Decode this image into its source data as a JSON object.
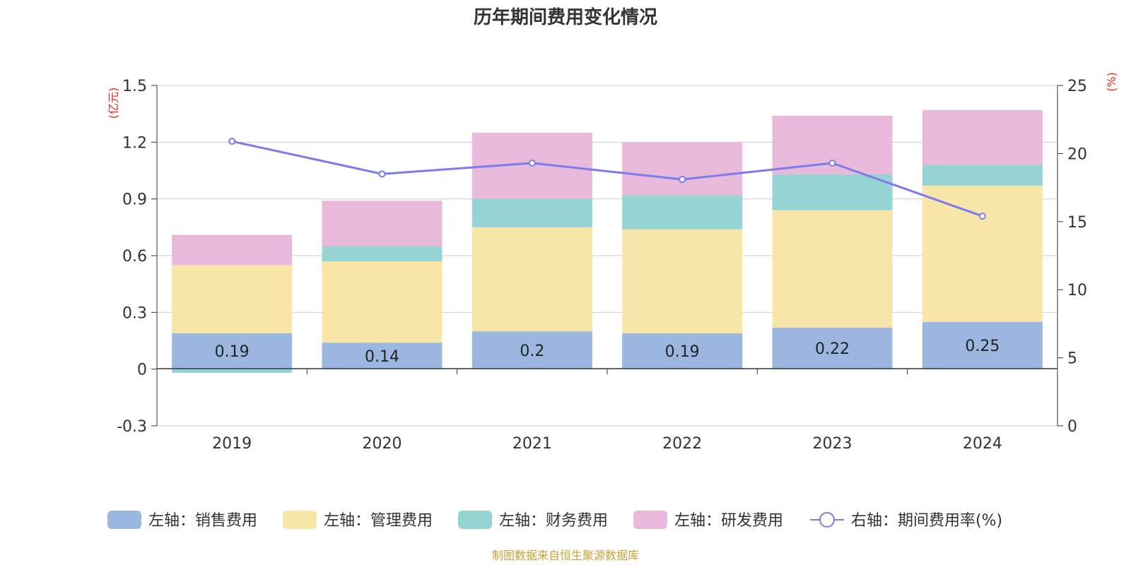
{
  "chart_data": {
    "type": "bar",
    "title": "历年期间费用变化情况",
    "categories": [
      "2019",
      "2020",
      "2021",
      "2022",
      "2023",
      "2024"
    ],
    "left_axis": {
      "unit_label": "(亿元)",
      "ylim": [
        -0.3,
        1.5
      ],
      "ticks": [
        "-0.3",
        "0",
        "0.3",
        "0.6",
        "0.9",
        "1.2",
        "1.5"
      ]
    },
    "right_axis": {
      "unit_label": "(%)",
      "ylim": [
        0,
        25
      ],
      "ticks": [
        "0",
        "5",
        "10",
        "15",
        "20",
        "25"
      ]
    },
    "series": [
      {
        "name": "左轴：销售费用",
        "type": "bar",
        "axis": "left",
        "color": "#9BB7E0",
        "values": [
          0.19,
          0.14,
          0.2,
          0.19,
          0.22,
          0.25
        ],
        "labels": [
          "0.19",
          "0.14",
          "0.2",
          "0.19",
          "0.22",
          "0.25"
        ]
      },
      {
        "name": "左轴：管理费用",
        "type": "bar",
        "axis": "left",
        "color": "#F8E6A8",
        "values": [
          0.36,
          0.43,
          0.55,
          0.55,
          0.62,
          0.72
        ]
      },
      {
        "name": "左轴：财务费用",
        "type": "bar",
        "axis": "left",
        "color": "#96D4D4",
        "values": [
          -0.02,
          0.08,
          0.15,
          0.18,
          0.19,
          0.11
        ]
      },
      {
        "name": "左轴：研发费用",
        "type": "bar",
        "axis": "left",
        "color": "#E8B9DA",
        "values": [
          0.16,
          0.24,
          0.35,
          0.28,
          0.31,
          0.29
        ]
      },
      {
        "name": "右轴：期间费用率(%)",
        "type": "line",
        "axis": "right",
        "color": "#7B7BEE",
        "values": [
          20.9,
          18.5,
          19.3,
          18.1,
          19.3,
          15.4
        ]
      }
    ],
    "grid": true,
    "legend_position": "bottom"
  },
  "footer": {
    "source": "制图数据来自恒生聚源数据库",
    "source_color": "#C8A032"
  }
}
